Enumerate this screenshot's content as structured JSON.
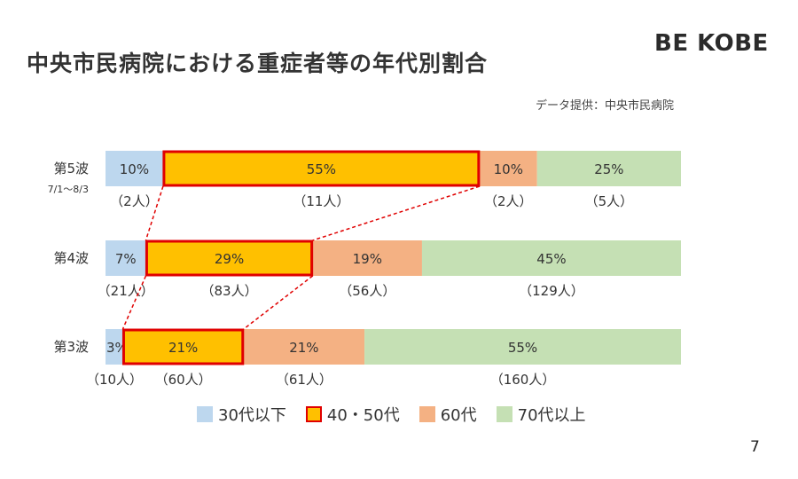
{
  "title": "中央市民病院における重症者等の年代別割合",
  "brand": "BE KOBE",
  "source": "データ提供：中央市民病院",
  "page_number": "7",
  "colors": {
    "30s_below": "#bdd7ee",
    "40s_50s": "#ffc000",
    "60s": "#f4b183",
    "70s_above": "#c5e0b4",
    "highlight_border": "#e00000"
  },
  "chart_data": {
    "type": "bar",
    "orientation": "horizontal",
    "stacked": "100%",
    "categories": [
      "第5波",
      "第4波",
      "第3波"
    ],
    "category_sublabels": [
      "7/1～8/3",
      "",
      ""
    ],
    "series": [
      {
        "name": "30代以下",
        "values": [
          10,
          7,
          3
        ],
        "counts": [
          "（2人）",
          "（21人）",
          "（10人）"
        ],
        "labels": [
          "10%",
          "7%",
          "3%"
        ]
      },
      {
        "name": "40・50代",
        "values": [
          55,
          29,
          21
        ],
        "counts": [
          "（11人）",
          "（83人）",
          "（60人）"
        ],
        "labels": [
          "55%",
          "29%",
          "21%"
        ]
      },
      {
        "name": "60代",
        "values": [
          10,
          19,
          21
        ],
        "counts": [
          "（2人）",
          "（56人）",
          "（61人）"
        ],
        "labels": [
          "10%",
          "19%",
          "21%"
        ]
      },
      {
        "name": "70代以上",
        "values": [
          25,
          45,
          55
        ],
        "counts": [
          "（5人）",
          "（129人）",
          "（160人）"
        ],
        "labels": [
          "25%",
          "45%",
          "55%"
        ]
      }
    ],
    "highlight_series": "40・50代",
    "legend": [
      "30代以下",
      "40・50代",
      "60代",
      "70代以上"
    ],
    "legend_position": "bottom"
  }
}
